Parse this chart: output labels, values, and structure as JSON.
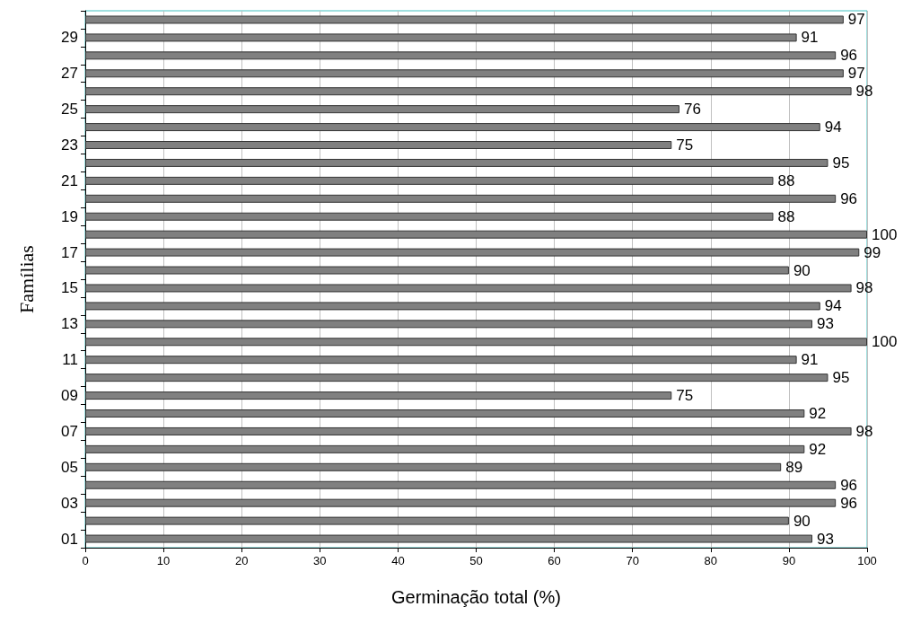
{
  "chart_data": {
    "type": "bar",
    "orientation": "horizontal",
    "xlabel": "Germinação total (%)",
    "ylabel": "Famílias",
    "categories": [
      null,
      "29",
      null,
      "27",
      null,
      "25",
      null,
      "23",
      null,
      "21",
      null,
      "19",
      null,
      "17",
      null,
      "15",
      null,
      "13",
      null,
      "11",
      null,
      "09",
      null,
      "07",
      null,
      "05",
      null,
      "03",
      null,
      "01"
    ],
    "values": [
      97,
      91,
      96,
      97,
      98,
      76,
      94,
      75,
      95,
      88,
      96,
      88,
      100,
      99,
      90,
      98,
      94,
      93,
      100,
      91,
      95,
      75,
      92,
      98,
      92,
      89,
      96,
      96,
      90,
      93
    ],
    "color": "#808080",
    "xlim": [
      0,
      100
    ],
    "xticks": [
      0,
      10,
      20,
      30,
      40,
      50,
      60,
      70,
      80,
      90,
      100
    ],
    "grid": "x",
    "data_labels": true
  }
}
